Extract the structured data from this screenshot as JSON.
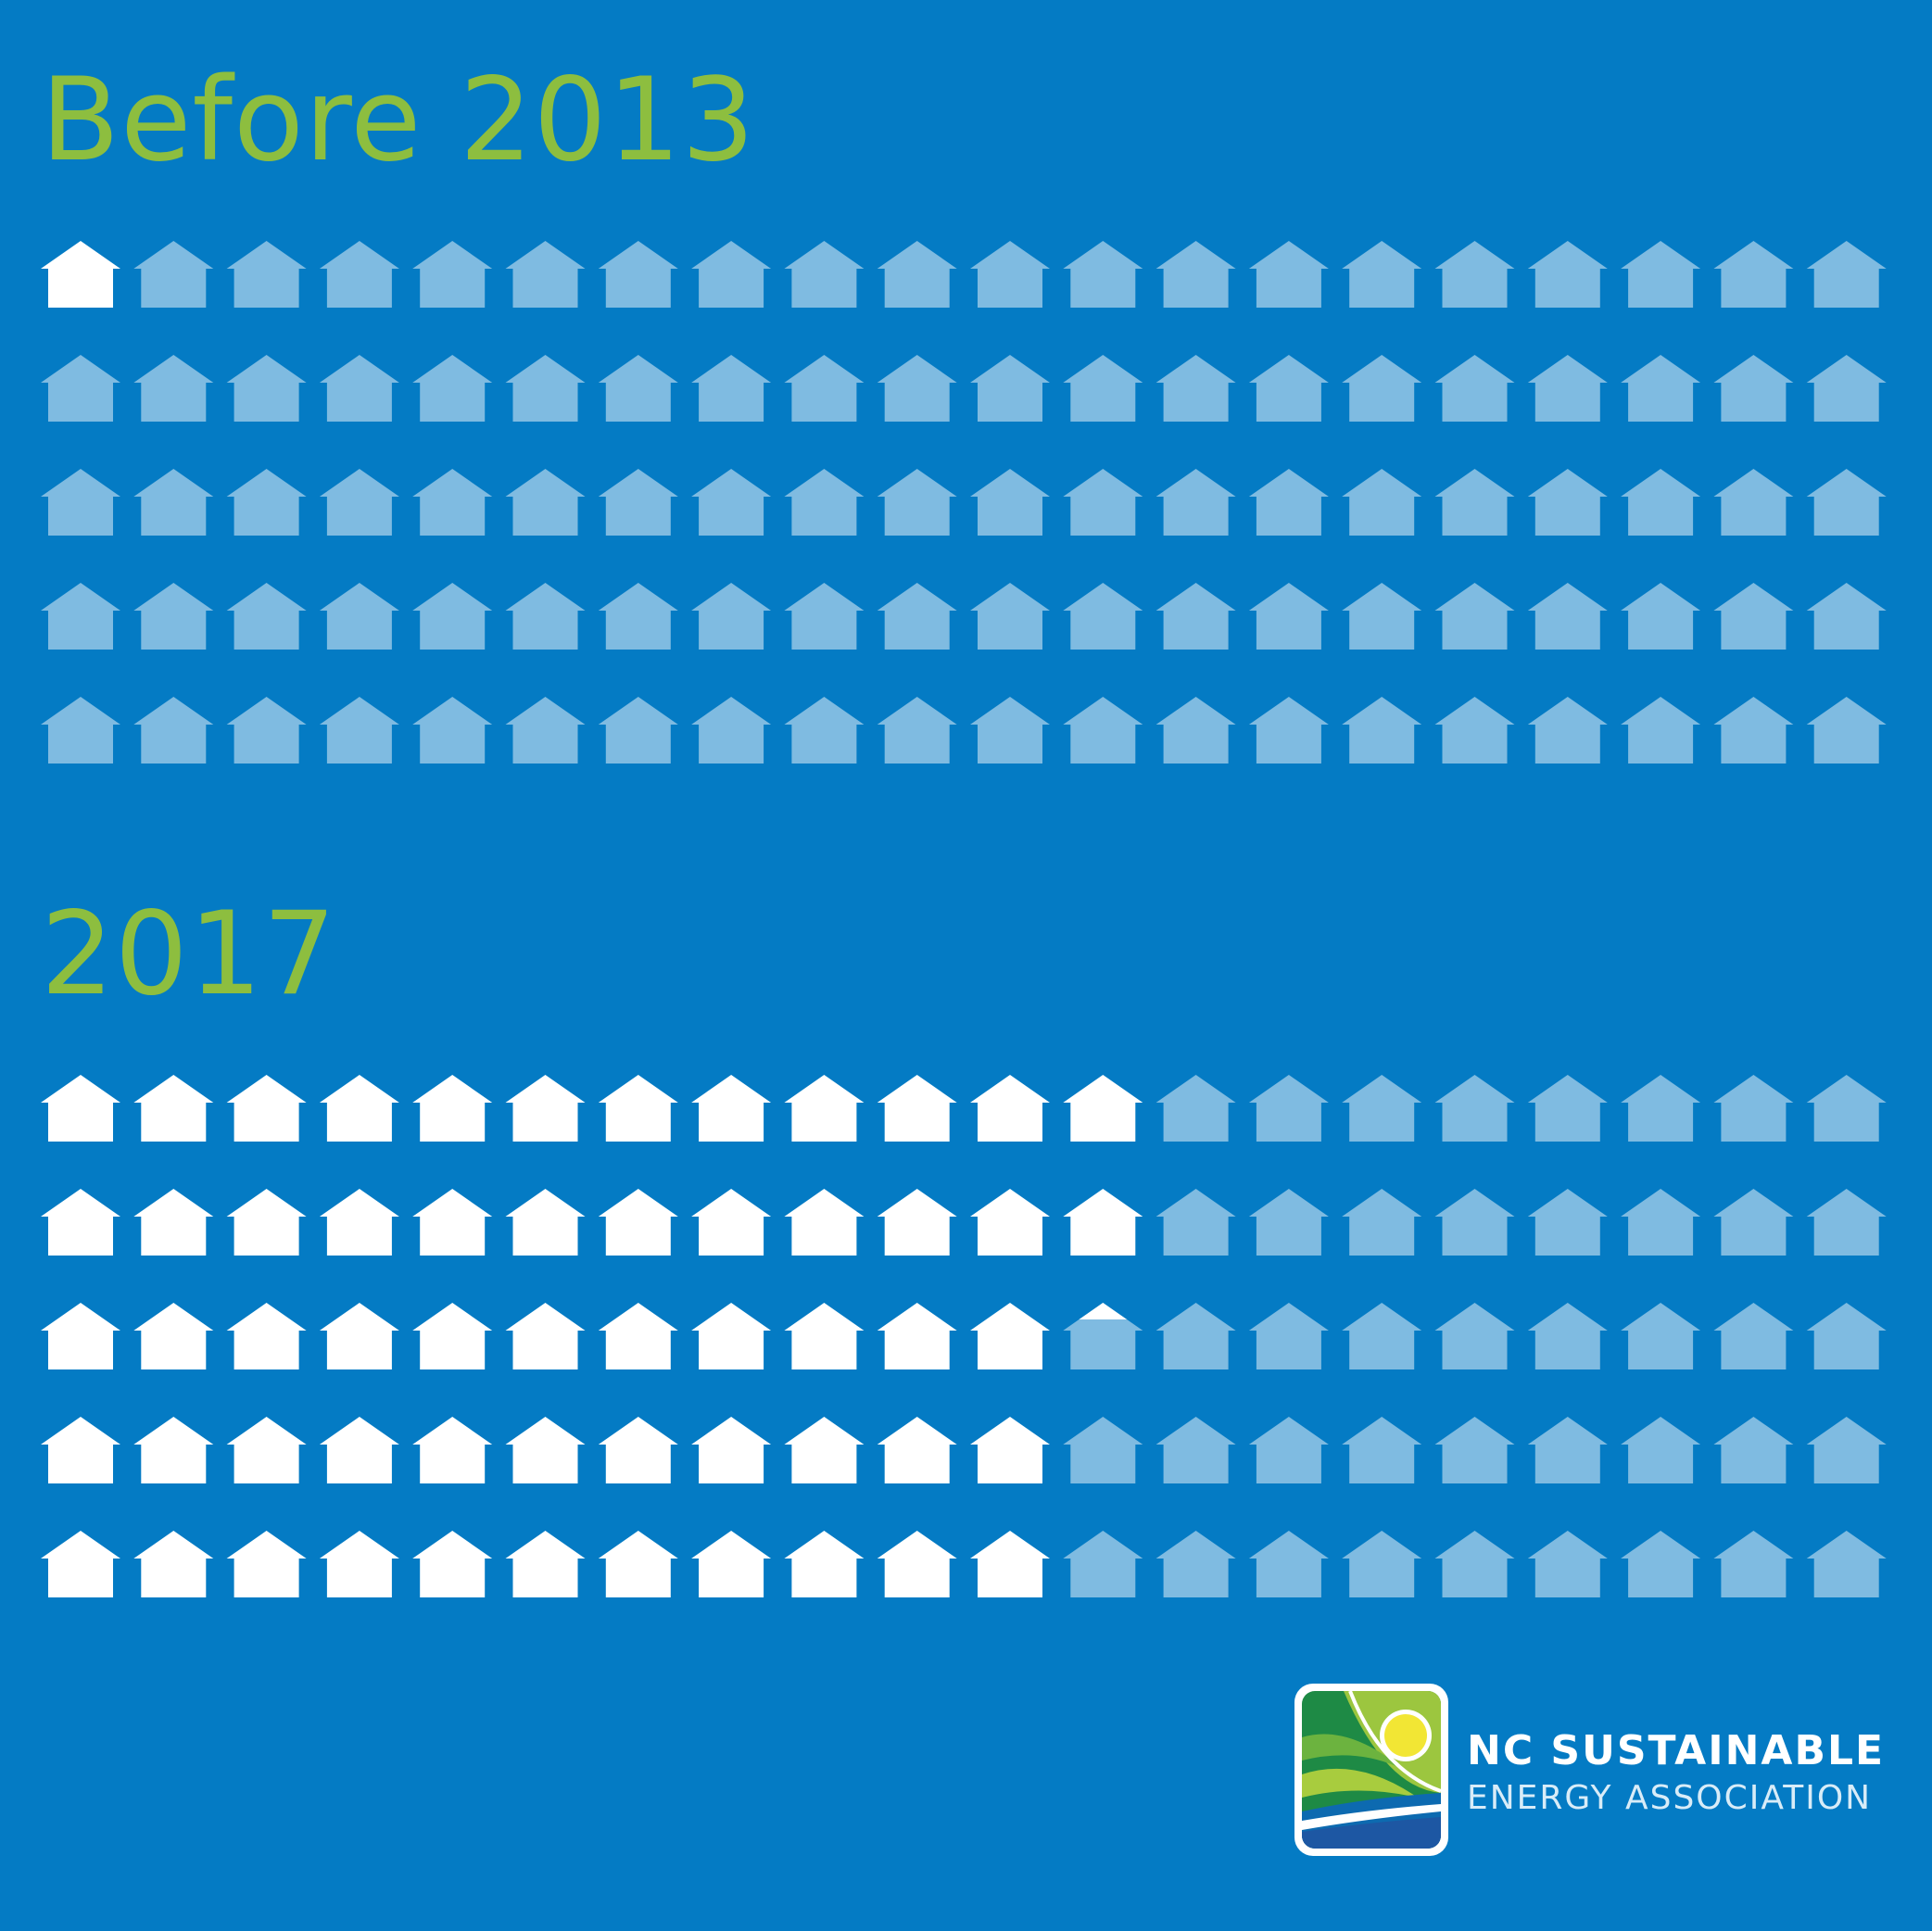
{
  "colors": {
    "background": "#047bc4",
    "title": "#8dbe3f",
    "highlight_house": "#ffffff",
    "base_house": "#7fbbe1"
  },
  "chart_data": [
    {
      "type": "pictogram",
      "title": "Before 2013",
      "rows": 5,
      "cols": 20,
      "total_icons": 100,
      "highlighted": 1,
      "icon": "house-icon"
    },
    {
      "type": "pictogram",
      "title": "2017",
      "rows": 5,
      "cols": 20,
      "total_icons": 100,
      "highlighted": 57.25,
      "icon": "house-icon"
    }
  ],
  "logo": {
    "line1": "NC SUSTAINABLE",
    "line2": "ENERGY ASSOCIATION"
  }
}
